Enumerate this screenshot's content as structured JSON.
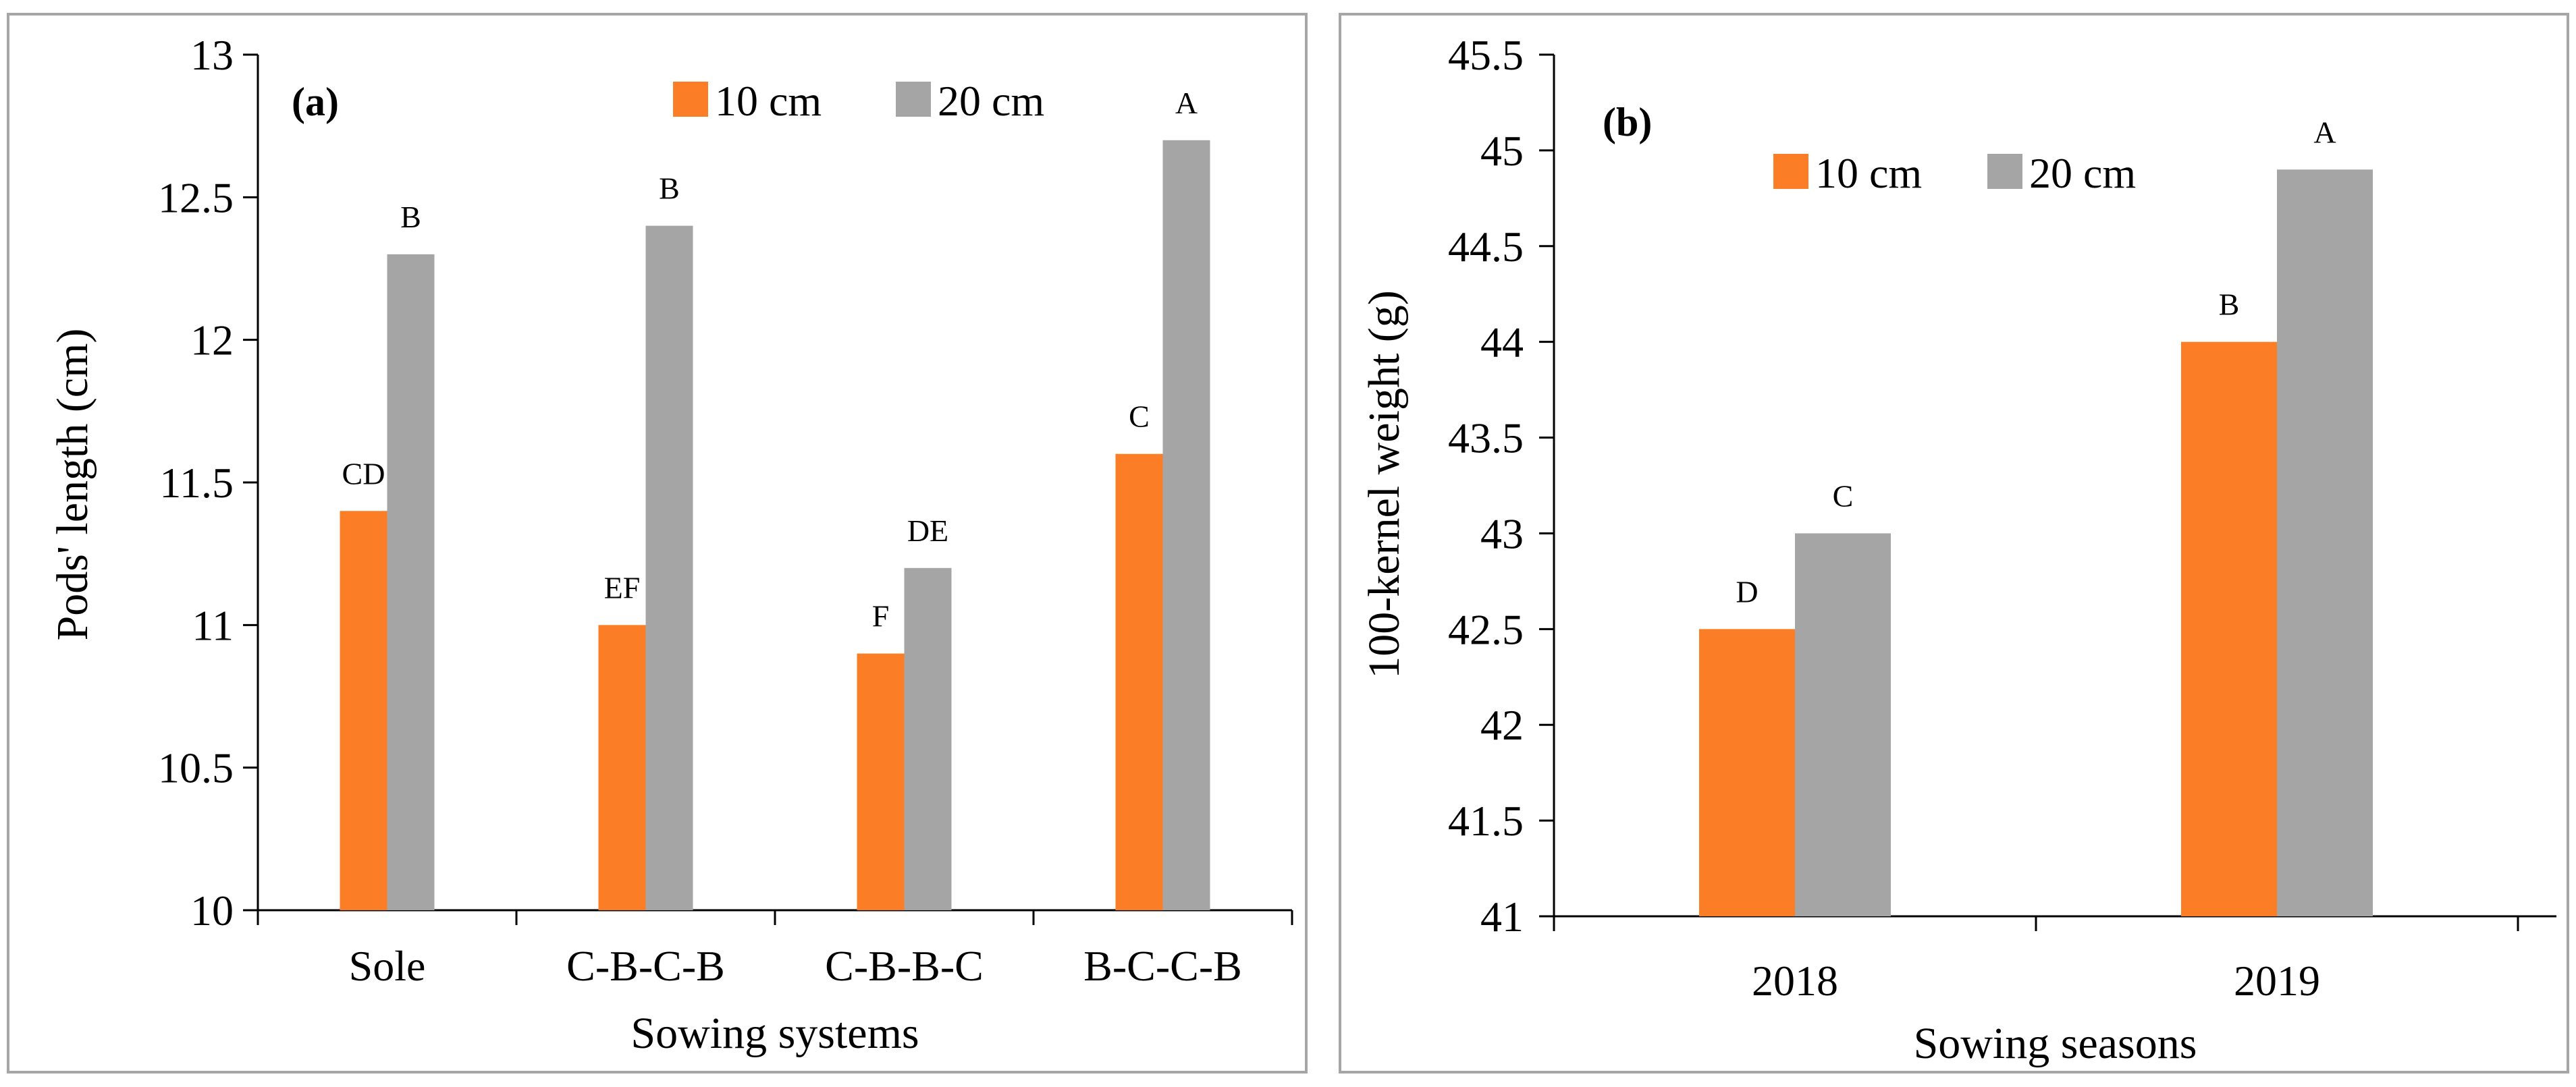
{
  "colors": {
    "s10": "#fb7e26",
    "s20": "#a5a5a5",
    "frame": "#a6a6a6",
    "axis": "#000000"
  },
  "chart_data": [
    {
      "id": "a",
      "type": "bar",
      "panel_label": "(a)",
      "title": "",
      "xlabel": "Sowing systems",
      "ylabel": "Pods' length (cm)",
      "ylim": [
        10,
        13
      ],
      "yticks": [
        10,
        10.5,
        11,
        11.5,
        12,
        12.5,
        13
      ],
      "ytick_labels": [
        "10",
        "10.5",
        "11",
        "11.5",
        "12",
        "12.5",
        "13"
      ],
      "categories": [
        "Sole",
        "C-B-C-B",
        "C-B-B-C",
        "B-C-C-B"
      ],
      "series": [
        {
          "name": "10 cm",
          "values": [
            11.4,
            11.0,
            10.9,
            11.6
          ],
          "letters": [
            "CD",
            "EF",
            "F",
            "C"
          ]
        },
        {
          "name": "20 cm",
          "values": [
            12.3,
            12.4,
            11.2,
            12.7
          ],
          "letters": [
            "B",
            "B",
            "DE",
            "A"
          ]
        }
      ],
      "legend_position": "top"
    },
    {
      "id": "b",
      "type": "bar",
      "panel_label": "(b)",
      "title": "",
      "xlabel": "Sowing seasons",
      "ylabel": "100-kernel weight (g)",
      "ylim": [
        41,
        45.5
      ],
      "yticks": [
        41,
        41.5,
        42,
        42.5,
        43,
        43.5,
        44,
        44.5,
        45,
        45.5
      ],
      "ytick_labels": [
        "41",
        "41.5",
        "42",
        "42.5",
        "43",
        "43.5",
        "44",
        "44.5",
        "45",
        "45.5"
      ],
      "categories": [
        "2018",
        "2019"
      ],
      "series": [
        {
          "name": "10 cm",
          "values": [
            42.5,
            44.0
          ],
          "letters": [
            "D",
            "B"
          ]
        },
        {
          "name": "20 cm",
          "values": [
            43.0,
            44.9
          ],
          "letters": [
            "C",
            "A"
          ]
        }
      ],
      "legend_position": "top"
    }
  ]
}
